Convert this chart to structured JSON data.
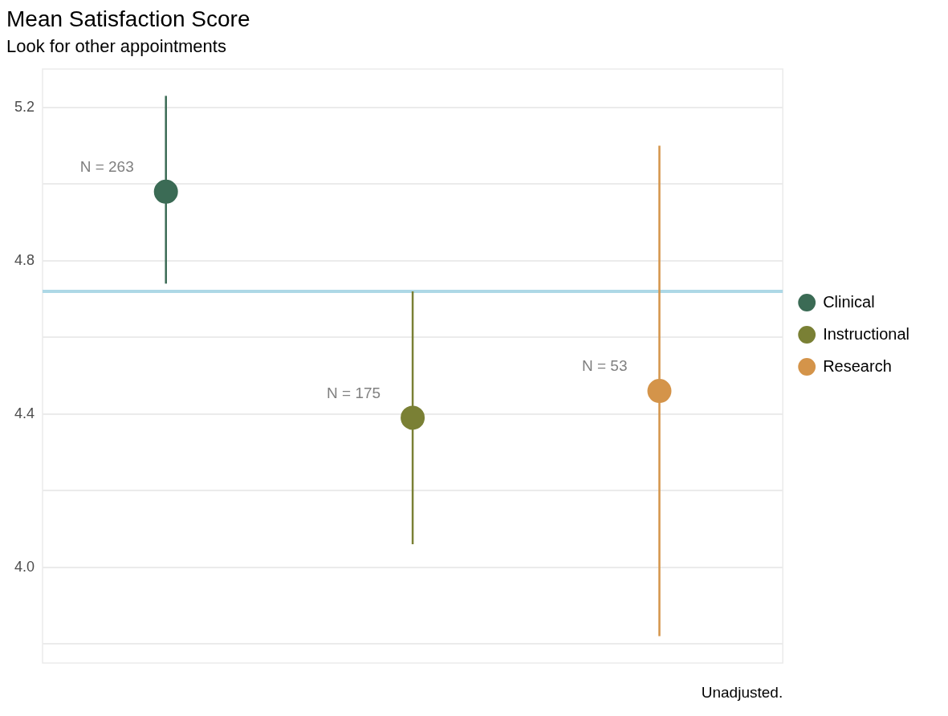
{
  "chart_data": {
    "type": "scatter",
    "title": "Mean Satisfaction Score",
    "subtitle": "Look for other appointments",
    "categories": [
      null,
      null,
      null
    ],
    "series": [
      {
        "name": "Clinical",
        "color": "#3b6b55",
        "values": [
          4.98,
          null,
          null
        ],
        "errors": [
          [
            4.74,
            5.23
          ],
          null,
          null
        ]
      },
      {
        "name": "Instructional",
        "color": "#7a8035",
        "values": [
          null,
          4.39,
          null
        ],
        "errors": [
          null,
          [
            4.06,
            4.72
          ],
          null
        ]
      },
      {
        "name": "Research",
        "color": "#d4944a",
        "values": [
          null,
          null,
          4.46
        ],
        "errors": [
          null,
          null,
          [
            3.82,
            5.1
          ]
        ]
      }
    ],
    "ylim": [
      3.75,
      5.3
    ],
    "yticks": [
      {
        "value": 4,
        "label": "4.0"
      },
      {
        "value": 4.2,
        "label": null
      },
      4.4,
      {
        "value": 4.6,
        "label": null
      },
      4.8,
      {
        "value": 5,
        "label": null
      },
      5.2,
      {
        "value": 3.8,
        "label": null
      }
    ],
    "ref_lines": [
      {
        "axis": "y",
        "value": 4.72,
        "color": "#add8e6"
      }
    ],
    "annotations": [
      "N = 263",
      "N = 175",
      "N = 53",
      "Unadjusted."
    ],
    "grid": "y",
    "legend": "right",
    "marker": "circle",
    "tick_labels": "y"
  }
}
